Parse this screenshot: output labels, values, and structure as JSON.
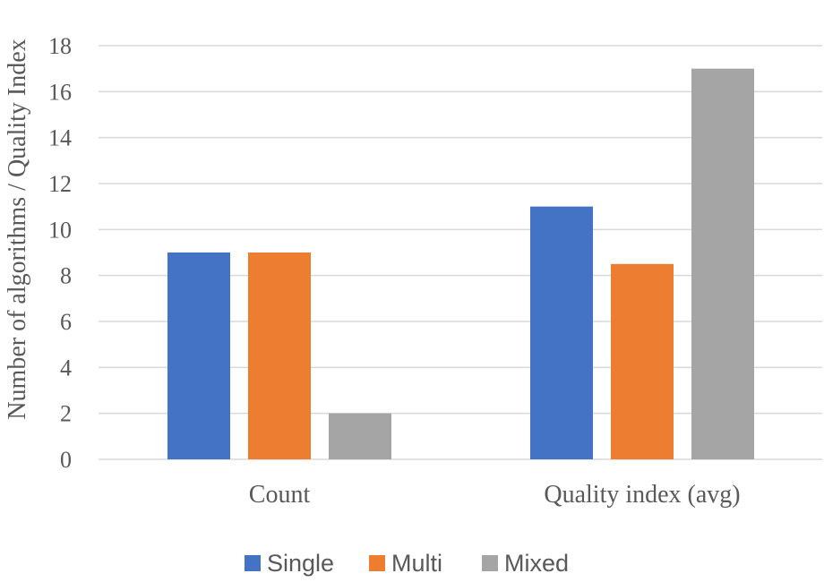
{
  "chart_data": {
    "type": "bar",
    "title": "",
    "xlabel": "",
    "ylabel": "Number of algorithms / Quality Index",
    "categories": [
      "Count",
      "Quality index (avg)"
    ],
    "series": [
      {
        "name": "Single",
        "values": [
          9,
          11
        ],
        "color": "#4472c4"
      },
      {
        "name": "Multi",
        "values": [
          9,
          8.5
        ],
        "color": "#ed7d31"
      },
      {
        "name": "Mixed",
        "values": [
          2,
          17
        ],
        "color": "#a5a5a5"
      }
    ],
    "ylim": [
      0,
      18
    ],
    "yticks": [
      "0",
      "2",
      "4",
      "6",
      "8",
      "10",
      "12",
      "14",
      "16",
      "18"
    ],
    "grid": true,
    "legend_position": "bottom"
  }
}
